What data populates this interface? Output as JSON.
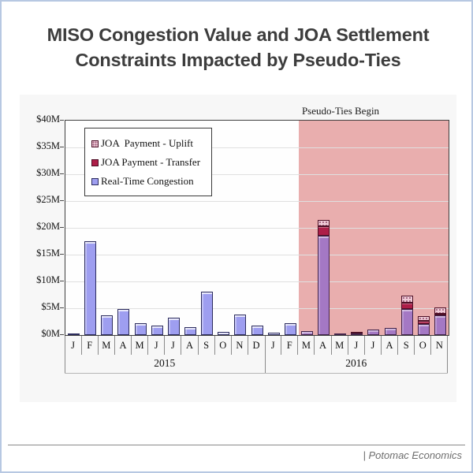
{
  "page": {
    "title_line1": "MISO Congestion Value and JOA Settlement",
    "title_line2": "Constraints Impacted by Pseudo-Ties",
    "annotation": "Pseudo-Ties Begin",
    "footer_brand": "| Potomac Economics"
  },
  "legend": {
    "items": [
      {
        "key": "uplift",
        "label": "JOA  Payment - Uplift"
      },
      {
        "key": "transfer",
        "label": "JOA Payment - Transfer"
      },
      {
        "key": "congestion",
        "label": "Real-Time Congestion"
      }
    ]
  },
  "chart_data": {
    "type": "bar",
    "stacked": true,
    "title": "MISO Congestion Value and JOA Settlement Constraints Impacted by Pseudo-Ties",
    "unit": "$M",
    "ylim": [
      0,
      40
    ],
    "ytick_step": 5,
    "ytick_labels_top_to_bottom": [
      "$40M",
      "$35M",
      "$30M",
      "$25M",
      "$20M",
      "$15M",
      "$10M",
      "$5M",
      "$0M"
    ],
    "grid": "horizontal",
    "legend_position": "top-left-inside",
    "annotation": {
      "text": "Pseudo-Ties Begin",
      "region_starts_at": "2016-M"
    },
    "pseudo_tie_start_index": 14,
    "year_groups": [
      {
        "year": "2015",
        "months": 12
      },
      {
        "year": "2016",
        "months": 11
      }
    ],
    "categories": [
      "J",
      "F",
      "M",
      "A",
      "M",
      "J",
      "J",
      "A",
      "S",
      "O",
      "N",
      "D",
      "J",
      "F",
      "M",
      "A",
      "M",
      "J",
      "J",
      "A",
      "S",
      "O",
      "N"
    ],
    "series": [
      {
        "name": "Real-Time Congestion",
        "values": [
          0.3,
          17.5,
          3.7,
          4.8,
          2.2,
          1.7,
          3.2,
          1.4,
          8.1,
          0.6,
          3.8,
          1.8,
          0.5,
          2.2,
          0.8,
          18.5,
          0.2,
          0.3,
          1.1,
          1.3,
          4.8,
          2.0,
          3.7
        ]
      },
      {
        "name": "JOA Payment - Transfer",
        "values": [
          0,
          0,
          0,
          0,
          0,
          0,
          0,
          0,
          0,
          0,
          0,
          0,
          0,
          0,
          0,
          1.8,
          0,
          0.2,
          0,
          0,
          1.3,
          0.7,
          0.2
        ]
      },
      {
        "name": "JOA Payment - Uplift",
        "values": [
          0,
          0,
          0,
          0,
          0,
          0,
          0,
          0,
          0,
          0,
          0,
          0,
          0,
          0,
          0,
          1.2,
          0,
          0,
          0,
          0,
          1.2,
          0.8,
          1.3
        ]
      }
    ]
  },
  "colors": {
    "page_border": "#b7c8e2",
    "panel_bg": "#f7f7f7",
    "plot_bg": "#fefefe",
    "plot_border": "#3f3f3f",
    "gridline": "#e0e0e0",
    "pseudo_region": "#e9aeae",
    "title_color": "#3d3d3d",
    "footer_color": "#6e6e6e",
    "congestion_fill": "#9e9ef0",
    "congestion_border": "#2c2c5e",
    "congestion_pseudo_fill": "#a478c4",
    "congestion_pseudo_border": "#42234a",
    "transfer_fill": "#ad1e48",
    "transfer_border": "#4d0f26",
    "uplift_fill": "#eecad6",
    "uplift_dot": "#9e5878",
    "uplift_border": "#4d0f26"
  }
}
